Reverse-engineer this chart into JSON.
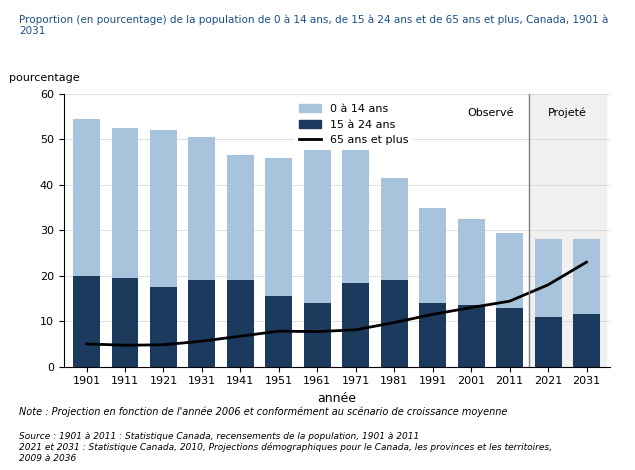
{
  "title": "Proportion (en pourcentage) de la population de 0 à 14 ans, de 15 à 24 ans et de 65 ans et plus, Canada, 1901 à 2031",
  "ylabel": "pourcentage",
  "xlabel": "année",
  "years": [
    1901,
    1911,
    1921,
    1931,
    1941,
    1951,
    1961,
    1971,
    1981,
    1991,
    2001,
    2011,
    2021,
    2031
  ],
  "bar_0_14": [
    34.5,
    33.0,
    34.5,
    31.5,
    27.5,
    30.5,
    34.0,
    29.5,
    22.5,
    21.0,
    19.0,
    16.5,
    17.0,
    16.5
  ],
  "bar_15_24": [
    20.0,
    19.5,
    17.5,
    19.0,
    19.0,
    15.5,
    14.0,
    18.5,
    19.0,
    14.0,
    13.5,
    13.0,
    11.0,
    11.5
  ],
  "line_65plus": [
    5.0,
    4.7,
    4.8,
    5.6,
    6.7,
    7.8,
    7.7,
    8.1,
    9.7,
    11.5,
    13.0,
    14.4,
    18.0,
    23.0
  ],
  "color_0_14": "#a8c4dc",
  "color_15_24": "#1c3a5e",
  "color_65plus": "#000000",
  "color_observed_bg": "#ffffff",
  "color_projected_bg": "#f5f5f5",
  "ylim": [
    0,
    60
  ],
  "yticks": [
    0,
    10,
    20,
    30,
    40,
    50,
    60
  ],
  "divider_year_index": 12,
  "observed_label": "Observé",
  "projected_label": "Projeté",
  "legend_0_14": "0 à 14 ans",
  "legend_15_24": "15 à 24 ans",
  "legend_65plus": "65 ans et plus",
  "note_text": "Note : Projection en fonction de l'année 2006 et conformément au scénario de croissance moyenne",
  "source_text": "Source : 1901 à 2011 : Statistique Canada, recensements de la population, 1901 à 2011\n2021 et 2031 : Statistique Canada, 2010, Projections démographiques pour le Canada, les provinces et les territoires,\n2009 à 2036",
  "title_color": "#1a4f8a",
  "bar_width": 0.7
}
